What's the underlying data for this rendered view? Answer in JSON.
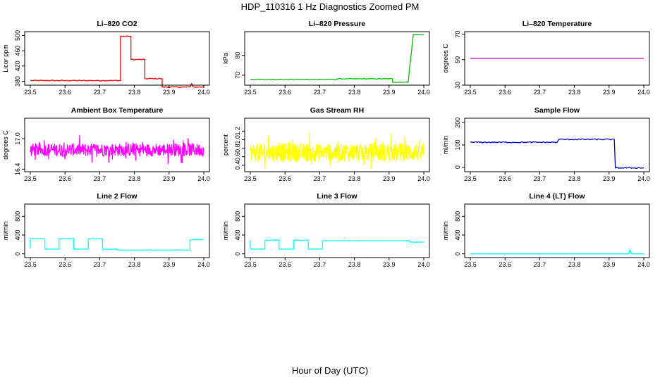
{
  "figure": {
    "title": "HDP_110316  1 Hz Diagnostics Zoomed PM",
    "xlabel": "Hour of Day (UTC)"
  },
  "chart_data": [
    {
      "type": "line",
      "title": "Li–820 CO2",
      "ylabel": "Licor ppm",
      "color": "#ff0000",
      "xlim": [
        23.5,
        24.0
      ],
      "ylim": [
        370,
        510
      ],
      "xticks": [
        "23.5",
        "23.6",
        "23.7",
        "23.8",
        "23.9",
        "24.0"
      ],
      "yticks": [
        "380",
        "420",
        "460",
        "500"
      ],
      "x": [
        23.5,
        23.74,
        23.76,
        23.76,
        23.79,
        23.79,
        23.83,
        23.83,
        23.88,
        23.88,
        23.96,
        23.965,
        23.97,
        24.0
      ],
      "y": [
        382,
        382,
        382,
        498,
        498,
        437,
        437,
        387,
        387,
        365,
        365,
        374,
        365,
        365
      ],
      "noise": 1.2
    },
    {
      "type": "line",
      "title": "Li–820 Pressure",
      "ylabel": "kPa",
      "color": "#00c000",
      "xlim": [
        23.5,
        24.0
      ],
      "ylim": [
        65,
        92
      ],
      "xticks": [
        "23.5",
        "23.6",
        "23.7",
        "23.8",
        "23.9",
        "24.0"
      ],
      "yticks": [
        "70",
        "80"
      ],
      "x": [
        23.5,
        23.75,
        23.75,
        23.91,
        23.91,
        23.955,
        23.96,
        23.97,
        24.0
      ],
      "y": [
        67.9,
        67.9,
        68.2,
        68.2,
        66.5,
        66.5,
        75,
        90.5,
        90.5
      ],
      "noise": 0.15
    },
    {
      "type": "line",
      "title": "Li–820 Temperature",
      "ylabel": "degrees C",
      "color": "#cc00cc",
      "xlim": [
        23.5,
        24.0
      ],
      "ylim": [
        30,
        72
      ],
      "xticks": [
        "23.5",
        "23.6",
        "23.7",
        "23.8",
        "23.9",
        "24.0"
      ],
      "yticks": [
        "30",
        "50",
        "70"
      ],
      "x": [
        23.5,
        24.0
      ],
      "y": [
        51,
        51
      ],
      "noise": 0
    },
    {
      "type": "line",
      "title": "Ambient Box Temperature",
      "ylabel": "degrees C",
      "color": "#ff00ff",
      "xlim": [
        23.5,
        24.0
      ],
      "ylim": [
        16.35,
        17.4
      ],
      "xticks": [
        "23.5",
        "23.6",
        "23.7",
        "23.8",
        "23.9",
        "24.0"
      ],
      "yticks": [
        "16.4",
        "17.0"
      ],
      "x": [
        23.5,
        24.0
      ],
      "y": [
        16.78,
        16.78
      ],
      "noise": 0.13,
      "noisy": true
    },
    {
      "type": "line",
      "title": "Gas Stream RH",
      "ylabel": "percent",
      "color": "#ffff00",
      "xlim": [
        23.5,
        24.0
      ],
      "ylim": [
        0.25,
        1.5
      ],
      "xticks": [
        "23.5",
        "23.6",
        "23.7",
        "23.8",
        "23.9",
        "24.0"
      ],
      "yticks": [
        "0.4",
        "0.6",
        "0.8",
        "1.0",
        "1.2"
      ],
      "x": [
        23.5,
        24.0
      ],
      "y": [
        0.7,
        0.7
      ],
      "noise": 0.22,
      "noisy": true
    },
    {
      "type": "line",
      "title": "Sample Flow",
      "ylabel": "ml/min",
      "color": "#0000cc",
      "xlim": [
        23.5,
        24.0
      ],
      "ylim": [
        -20,
        220
      ],
      "xticks": [
        "23.5",
        "23.6",
        "23.7",
        "23.8",
        "23.9",
        "24.0"
      ],
      "yticks": [
        "0",
        "100",
        "200"
      ],
      "x": [
        23.5,
        23.75,
        23.755,
        23.915,
        23.918,
        24.0
      ],
      "y": [
        112,
        112,
        125,
        125,
        -3,
        -3
      ],
      "noise": 2.5
    },
    {
      "type": "line",
      "title": "Line 2 Flow",
      "ylabel": "ml/min",
      "color": "#00ffff",
      "xlim": [
        23.5,
        24.0
      ],
      "ylim": [
        -80,
        1060
      ],
      "xticks": [
        "23.5",
        "23.6",
        "23.7",
        "23.8",
        "23.9",
        "24.0"
      ],
      "yticks": [
        "0",
        "400",
        "800"
      ],
      "x": [
        23.5,
        23.5,
        23.542,
        23.542,
        23.583,
        23.583,
        23.625,
        23.625,
        23.667,
        23.667,
        23.708,
        23.708,
        23.75,
        23.75,
        23.96,
        23.96,
        24.0
      ],
      "y": [
        120,
        320,
        320,
        100,
        100,
        320,
        320,
        100,
        100,
        320,
        320,
        100,
        100,
        80,
        80,
        300,
        300
      ],
      "noise": 6
    },
    {
      "type": "line",
      "title": "Line 3 Flow",
      "ylabel": "ml/min",
      "color": "#00ffff",
      "xlim": [
        23.5,
        24.0
      ],
      "ylim": [
        -80,
        1060
      ],
      "xticks": [
        "23.5",
        "23.6",
        "23.7",
        "23.8",
        "23.9",
        "24.0"
      ],
      "yticks": [
        "0",
        "400",
        "800"
      ],
      "x": [
        23.5,
        23.5,
        23.502,
        23.542,
        23.542,
        23.583,
        23.583,
        23.625,
        23.625,
        23.667,
        23.667,
        23.708,
        23.708,
        23.96,
        23.96,
        24.0
      ],
      "y": [
        290,
        120,
        100,
        100,
        290,
        290,
        100,
        100,
        290,
        290,
        100,
        100,
        280,
        280,
        250,
        250
      ],
      "noise": 5
    },
    {
      "type": "line",
      "title": "Line 4 (LT) Flow",
      "ylabel": "ml/min",
      "color": "#00ffff",
      "xlim": [
        23.5,
        24.0
      ],
      "ylim": [
        -80,
        1060
      ],
      "xticks": [
        "23.5",
        "23.6",
        "23.7",
        "23.8",
        "23.9",
        "24.0"
      ],
      "yticks": [
        "0",
        "400",
        "800"
      ],
      "x": [
        23.5,
        23.957,
        23.96,
        23.962,
        23.965,
        24.0
      ],
      "y": [
        0,
        0,
        90,
        30,
        0,
        0
      ],
      "noise": 2
    }
  ]
}
